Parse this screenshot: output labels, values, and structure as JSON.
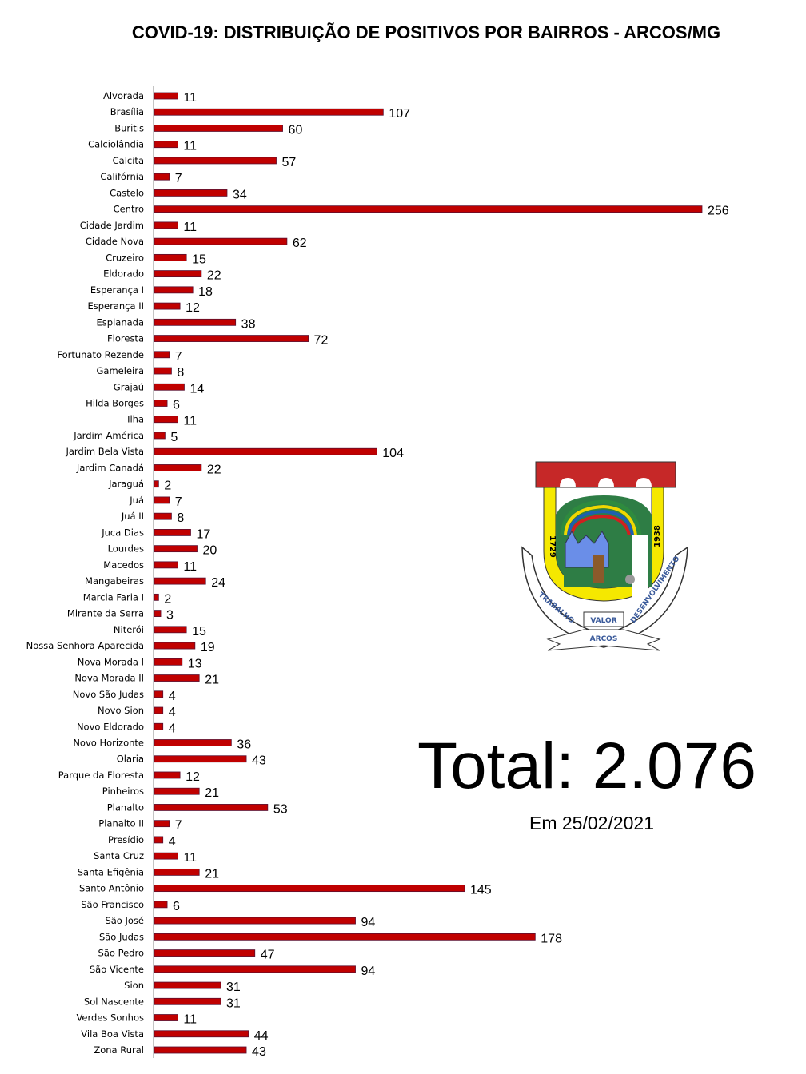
{
  "title": "COVID-19: DISTRIBUIÇÃO DE POSITIVOS POR BAIRROS - ARCOS/MG",
  "total": "Total: 2.076",
  "date": "Em 25/02/2021",
  "logo": {
    "years_left": "1729",
    "years_right": "1938",
    "motto_left": "TRABALHO",
    "motto_center": "VALOR",
    "motto_right": "DESENVOLVIMENTO",
    "name": "ARCOS"
  },
  "colors": {
    "bar": "#C00000",
    "bar_edge": "#5a1030"
  },
  "chart_data": {
    "type": "bar",
    "orientation": "horizontal",
    "title": "COVID-19: DISTRIBUIÇÃO DE POSITIVOS POR BAIRROS - ARCOS/MG",
    "xlim": [
      0,
      256
    ],
    "grid": false,
    "categories": [
      "Alvorada",
      "Brasília",
      "Buritis",
      "Calciolândia",
      "Calcita",
      "Califórnia",
      "Castelo",
      "Centro",
      "Cidade Jardim",
      "Cidade Nova",
      "Cruzeiro",
      "Eldorado",
      "Esperança I",
      "Esperança II",
      "Esplanada",
      "Floresta",
      "Fortunato Rezende",
      "Gameleira",
      "Grajaú",
      "Hilda Borges",
      "Ilha",
      "Jardim América",
      "Jardim Bela Vista",
      "Jardim Canadá",
      "Jaraguá",
      "Juá",
      "Juá II",
      "Juca Dias",
      "Lourdes",
      "Macedos",
      "Mangabeiras",
      "Marcia Faria I",
      "Mirante da Serra",
      "Niterói",
      "Nossa Senhora Aparecida",
      "Nova Morada I",
      "Nova Morada II",
      "Novo São Judas",
      "Novo Sion",
      "Novo Eldorado",
      "Novo Horizonte",
      "Olaria",
      "Parque da Floresta",
      "Pinheiros",
      "Planalto",
      "Planalto II",
      "Presídio",
      "Santa Cruz",
      "Santa Efigênia",
      "Santo Antônio",
      "São Francisco",
      "São José",
      "São Judas",
      "São Pedro",
      "São Vicente",
      "Sion",
      "Sol Nascente",
      "Verdes Sonhos",
      "Vila Boa Vista",
      "Zona Rural"
    ],
    "values": [
      11,
      107,
      60,
      11,
      57,
      7,
      34,
      256,
      11,
      62,
      15,
      22,
      18,
      12,
      38,
      72,
      7,
      8,
      14,
      6,
      11,
      5,
      104,
      22,
      2,
      7,
      8,
      17,
      20,
      11,
      24,
      2,
      3,
      15,
      19,
      13,
      21,
      4,
      4,
      4,
      36,
      43,
      12,
      21,
      53,
      7,
      4,
      11,
      21,
      145,
      6,
      94,
      178,
      47,
      94,
      31,
      31,
      11,
      44,
      43
    ]
  }
}
